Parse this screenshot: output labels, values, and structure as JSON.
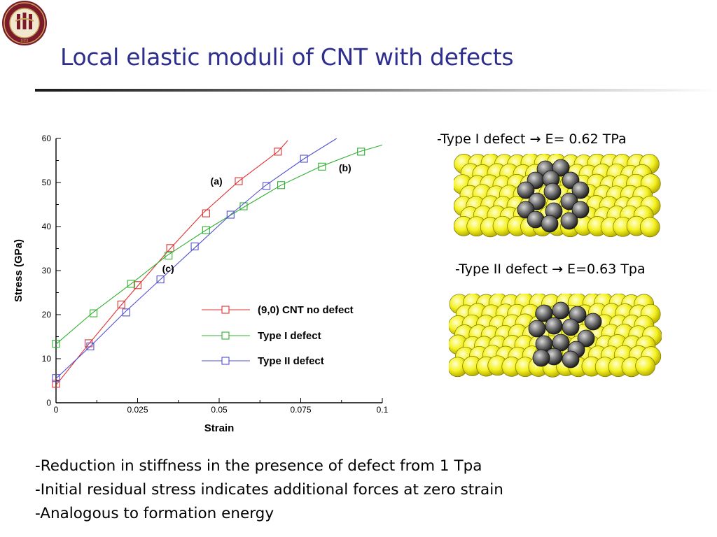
{
  "slide": {
    "title": "Local elastic moduli of CNT with defects",
    "logo": {
      "icon": "university-seal-icon",
      "year_text": "1851",
      "ring_text": "FLORIDA STATE UNIVERSITY",
      "colors": {
        "garnet": "#7a1a2a",
        "gold": "#c8a45a"
      }
    },
    "bullets": [
      "-Reduction in stiffness in the presence of defect from 1 Tpa",
      "-Initial residual stress indicates additional forces at zero strain",
      "-Analogous to formation energy"
    ],
    "defects": [
      {
        "label": "-Type I defect  → E= 0.62 TPa",
        "image": "nanotube-type1-defect-icon"
      },
      {
        "label": "-Type II defect → E=0.63 Tpa",
        "image": "nanotube-type2-defect-icon"
      }
    ],
    "colors": {
      "title": "#2e2e8e",
      "atom_yellow": "#f5f224",
      "atom_gray": "#6e6e6e"
    }
  },
  "chart_data": {
    "type": "line",
    "xlabel": "Strain",
    "ylabel": "Stress (GPa)",
    "xlim": [
      0,
      0.1
    ],
    "ylim": [
      0,
      60
    ],
    "xticks": [
      0,
      0.025,
      0.05,
      0.075,
      0.1
    ],
    "xtick_labels": [
      "0",
      "0.025",
      "0.05",
      "0.075",
      "0.1"
    ],
    "yticks": [
      0,
      10,
      20,
      30,
      40,
      50,
      60
    ],
    "ytick_labels": [
      "0",
      "10",
      "20",
      "30",
      "40",
      "50",
      "60"
    ],
    "grid": false,
    "legend_position": "lower-right",
    "series": [
      {
        "name": "(9,0) CNT no defect",
        "color": "#e03030",
        "curve": [
          [
            0,
            4
          ],
          [
            0.01,
            13.3
          ],
          [
            0.02,
            22.2
          ],
          [
            0.025,
            26.5
          ],
          [
            0.035,
            35
          ],
          [
            0.045,
            43
          ],
          [
            0.056,
            50.3
          ],
          [
            0.068,
            57
          ],
          [
            0.071,
            59.5
          ]
        ],
        "markers": [
          [
            0,
            4.3
          ],
          [
            0.01,
            13.5
          ],
          [
            0.02,
            22.3
          ],
          [
            0.025,
            26.7
          ],
          [
            0.035,
            35.1
          ],
          [
            0.046,
            43
          ],
          [
            0.056,
            50.3
          ],
          [
            0.068,
            57
          ]
        ]
      },
      {
        "name": "Type I defect",
        "color": "#30b030",
        "curve": [
          [
            0,
            13.3
          ],
          [
            0.011,
            20.3
          ],
          [
            0.023,
            27
          ],
          [
            0.034,
            33.4
          ],
          [
            0.046,
            39.2
          ],
          [
            0.058,
            44.6
          ],
          [
            0.069,
            49.4
          ],
          [
            0.081,
            53.6
          ],
          [
            0.093,
            57
          ],
          [
            0.1,
            58.5
          ]
        ],
        "markers": [
          [
            0,
            13.4
          ],
          [
            0.0115,
            20.3
          ],
          [
            0.023,
            27
          ],
          [
            0.0345,
            33.4
          ],
          [
            0.046,
            39.2
          ],
          [
            0.0575,
            44.6
          ],
          [
            0.069,
            49.4
          ],
          [
            0.0815,
            53.6
          ],
          [
            0.0935,
            57
          ]
        ]
      },
      {
        "name": "Type II defect",
        "color": "#5050d0",
        "curve": [
          [
            0,
            5.5
          ],
          [
            0.0105,
            12.8
          ],
          [
            0.021,
            20.5
          ],
          [
            0.032,
            28
          ],
          [
            0.043,
            35.5
          ],
          [
            0.0535,
            42.7
          ],
          [
            0.064,
            49.2
          ],
          [
            0.076,
            55.4
          ],
          [
            0.086,
            60
          ]
        ],
        "markers": [
          [
            0,
            5.6
          ],
          [
            0.0105,
            12.8
          ],
          [
            0.0215,
            20.5
          ],
          [
            0.032,
            28
          ],
          [
            0.0425,
            35.5
          ],
          [
            0.0535,
            42.7
          ],
          [
            0.0645,
            49.2
          ],
          [
            0.076,
            55.4
          ]
        ]
      }
    ],
    "annotations": [
      {
        "text": "(a)",
        "x": 0.051,
        "y": 50.3
      },
      {
        "text": "(b)",
        "x": 0.0905,
        "y": 53.3
      },
      {
        "text": "(c)",
        "x": 0.0362,
        "y": 30.5
      }
    ]
  }
}
